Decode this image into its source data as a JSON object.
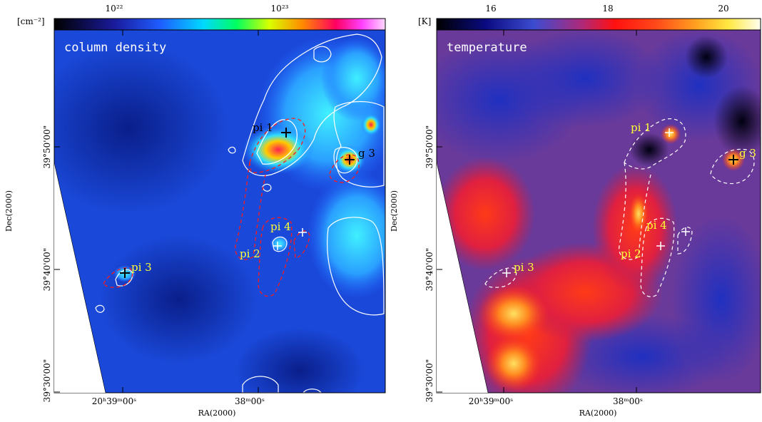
{
  "left_panel": {
    "unit": "[cm⁻²]",
    "colorbar_ticks": [
      "10²²",
      "10²³"
    ],
    "title": "column density",
    "ra_ticks": [
      "20ʰ39ᵐ00ˢ",
      "38ᵐ00ˢ"
    ],
    "dec_ticks": [
      "39°50'00\"",
      "39°40'00\"",
      "39°30'00\""
    ],
    "xlabel": "RA(2000)",
    "ylabel": "Dec(2000)",
    "sources": [
      {
        "label": "pi 1",
        "color": "#000000"
      },
      {
        "label": "g 3",
        "color": "#000000"
      },
      {
        "label": "pi 4",
        "color": "#ffff33"
      },
      {
        "label": "pi 2",
        "color": "#ffff33"
      },
      {
        "label": "pi 3",
        "color": "#ffff33"
      }
    ]
  },
  "right_panel": {
    "unit": "[K]",
    "colorbar_ticks": [
      "16",
      "18",
      "20"
    ],
    "title": "temperature",
    "ra_ticks": [
      "20ʰ39ᵐ00ˢ",
      "38ᵐ00ˢ"
    ],
    "dec_ticks": [
      "39°50'00\"",
      "39°40'00\"",
      "39°30'00\""
    ],
    "xlabel": "RA(2000)",
    "ylabel": "Dec(2000)",
    "sources": [
      {
        "label": "pi 1",
        "color": "#ffff33"
      },
      {
        "label": "g 3",
        "color": "#ffff33"
      },
      {
        "label": "pi 4",
        "color": "#ffff33"
      },
      {
        "label": "pi 2",
        "color": "#ffff33"
      },
      {
        "label": "pi 3",
        "color": "#ffff33"
      }
    ]
  },
  "colors": {
    "density_low": "#1030b0",
    "density_mid": "#2aa0ff",
    "density_high": "#ffee00",
    "temp_low": "#4040a8",
    "temp_high": "#ff2a1a",
    "contour_left_red": "#ff1a1a",
    "contour_white": "#ffffff"
  }
}
